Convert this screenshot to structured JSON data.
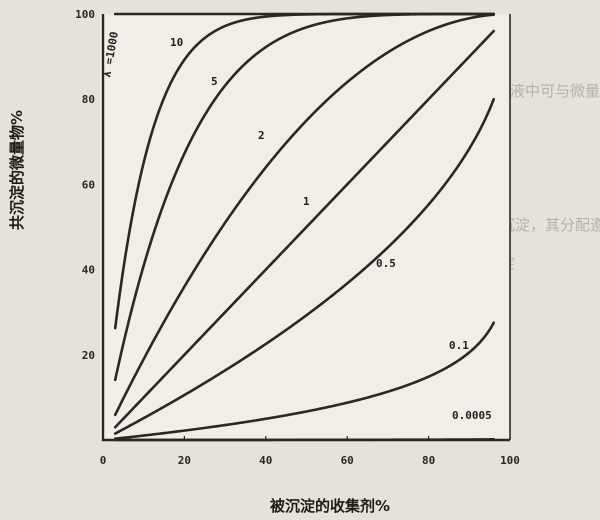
{
  "chart_data": {
    "type": "line",
    "title": "",
    "xlabel": "被沉淀的收集剂%",
    "ylabel": "共沉淀的微量物%",
    "xlim": [
      0,
      100
    ],
    "ylim": [
      0,
      100
    ],
    "x_ticks": [
      "0",
      "20",
      "40",
      "60",
      "80",
      "100"
    ],
    "y_ticks": [
      "20",
      "40",
      "60",
      "80",
      "100"
    ],
    "grid": false,
    "legend": "none",
    "series": [
      {
        "name": "λ =1000",
        "lambda": 1000
      },
      {
        "name": "10",
        "lambda": 10
      },
      {
        "name": "5",
        "lambda": 5
      },
      {
        "name": "2",
        "lambda": 2
      },
      {
        "name": "1",
        "lambda": 1
      },
      {
        "name": "0.5",
        "lambda": 0.5
      },
      {
        "name": "0.1",
        "lambda": 0.1
      },
      {
        "name": "0.0005",
        "lambda": 0.0005
      }
    ],
    "line_color": "#2b2725"
  },
  "background_text": [
    "中性或碱性溶液中可与微量的铁、铝共沉淀",
    "均匀沉淀，其分配遵守对数分配定律",
    "共沉淀"
  ]
}
